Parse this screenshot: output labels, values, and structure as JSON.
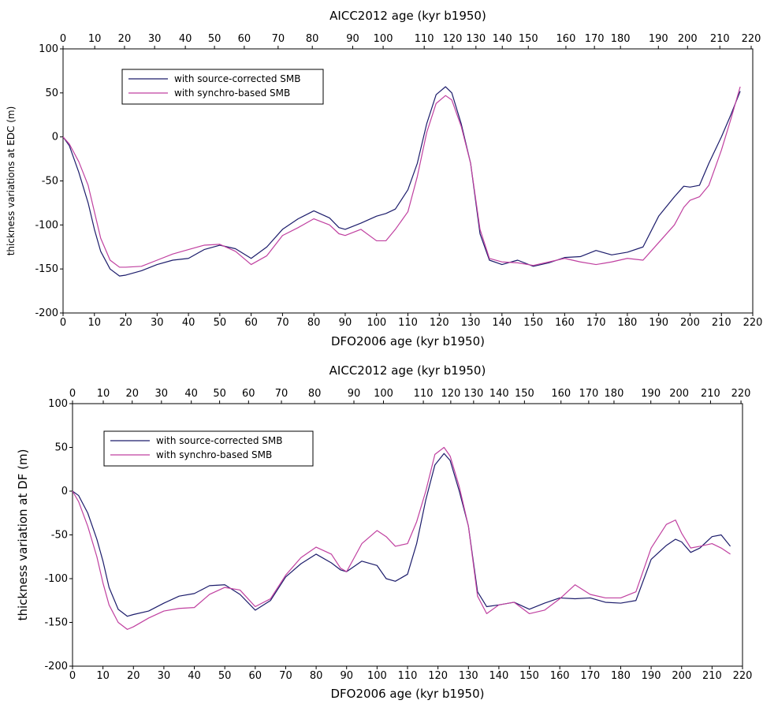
{
  "chart_data": [
    {
      "type": "line",
      "x2label": "AICC2012 age (kyr b1950)",
      "xlabel": "DFO2006 age (kyr b1950)",
      "ylabel": "thickness variations at EDC (m)",
      "xlim": [
        0,
        220
      ],
      "ylim": [
        -200,
        100
      ],
      "xticks": [
        0,
        10,
        20,
        30,
        40,
        50,
        60,
        70,
        80,
        90,
        100,
        110,
        120,
        130,
        140,
        150,
        160,
        170,
        180,
        190,
        200,
        210,
        220
      ],
      "yticks": [
        -200,
        -150,
        -100,
        -50,
        0,
        50,
        100
      ],
      "x2ticks": [
        0,
        10,
        20,
        30,
        40,
        50,
        60,
        70,
        80,
        90,
        100,
        110,
        120,
        130,
        140,
        150,
        160,
        170,
        180,
        190,
        200,
        210,
        220
      ],
      "x2tick_positions": [
        0,
        10.1,
        19.6,
        29.2,
        39.0,
        48.3,
        57.8,
        68.6,
        79.5,
        92.4,
        102.1,
        115.2,
        124.2,
        131.7,
        140.1,
        148.4,
        160.4,
        169.5,
        177.8,
        189.9,
        199.2,
        209.5,
        219.5
      ],
      "x": [
        0,
        2,
        5,
        8,
        10,
        12,
        15,
        18,
        20,
        25,
        30,
        35,
        40,
        45,
        50,
        55,
        60,
        65,
        70,
        75,
        80,
        85,
        88,
        90,
        95,
        100,
        103,
        106,
        110,
        113,
        116,
        119,
        122,
        124,
        127,
        130,
        133,
        136,
        140,
        145,
        150,
        155,
        160,
        165,
        170,
        175,
        180,
        185,
        190,
        195,
        198,
        200,
        203,
        206,
        210,
        213,
        216
      ],
      "series": [
        {
          "name": "with source-corrected SMB",
          "color": "#1c1c6b",
          "values": [
            0,
            -10,
            -40,
            -75,
            -105,
            -130,
            -150,
            -158,
            -157,
            -152,
            -145,
            -140,
            -138,
            -128,
            -123,
            -127,
            -138,
            -125,
            -105,
            -93,
            -84,
            -92,
            -103,
            -105,
            -98,
            -90,
            -87,
            -82,
            -60,
            -30,
            15,
            48,
            57,
            50,
            15,
            -30,
            -110,
            -140,
            -145,
            -140,
            -147,
            -143,
            -137,
            -136,
            -129,
            -134,
            -131,
            -125,
            -90,
            -68,
            -56,
            -57,
            -55,
            -30,
            0,
            25,
            52
          ]
        },
        {
          "name": "with synchro-based SMB",
          "color": "#c040a0",
          "values": [
            0,
            -8,
            -28,
            -55,
            -85,
            -115,
            -140,
            -148,
            -148,
            -147,
            -140,
            -133,
            -128,
            -123,
            -122,
            -130,
            -145,
            -135,
            -112,
            -103,
            -93,
            -100,
            -110,
            -112,
            -105,
            -118,
            -118,
            -105,
            -85,
            -45,
            5,
            38,
            47,
            42,
            12,
            -30,
            -105,
            -138,
            -142,
            -143,
            -146,
            -142,
            -138,
            -142,
            -145,
            -142,
            -138,
            -140,
            -120,
            -100,
            -80,
            -72,
            -68,
            -55,
            -15,
            20,
            57
          ]
        }
      ]
    },
    {
      "type": "line",
      "x2label": "AICC2012 age (kyr b1950)",
      "xlabel": "DFO2006 age (kyr b1950)",
      "ylabel": "thickness variation at DF (m)",
      "xlim": [
        0,
        220
      ],
      "ylim": [
        -200,
        100
      ],
      "xticks": [
        0,
        10,
        20,
        30,
        40,
        50,
        60,
        70,
        80,
        90,
        100,
        110,
        120,
        130,
        140,
        150,
        160,
        170,
        180,
        190,
        200,
        210,
        220
      ],
      "yticks": [
        -200,
        -150,
        -100,
        -50,
        0,
        50,
        100
      ],
      "x2ticks": [
        0,
        10,
        20,
        30,
        40,
        50,
        60,
        70,
        80,
        90,
        100,
        110,
        120,
        130,
        140,
        150,
        160,
        170,
        180,
        190,
        200,
        210,
        220
      ],
      "x2tick_positions": [
        0,
        10.1,
        19.6,
        29.2,
        39.0,
        48.3,
        57.8,
        68.6,
        79.5,
        92.4,
        102.1,
        115.2,
        124.2,
        131.7,
        140.1,
        148.4,
        160.4,
        169.5,
        177.8,
        189.9,
        199.2,
        209.5,
        219.5
      ],
      "x": [
        0,
        2,
        5,
        8,
        10,
        12,
        15,
        18,
        20,
        25,
        30,
        35,
        40,
        45,
        50,
        55,
        60,
        65,
        70,
        75,
        80,
        85,
        88,
        90,
        95,
        100,
        103,
        106,
        110,
        113,
        116,
        119,
        122,
        124,
        127,
        130,
        133,
        136,
        140,
        145,
        150,
        155,
        160,
        165,
        170,
        175,
        180,
        185,
        190,
        195,
        198,
        200,
        203,
        206,
        210,
        213,
        216
      ],
      "series": [
        {
          "name": "with source-corrected SMB",
          "color": "#1c1c6b",
          "values": [
            0,
            -5,
            -25,
            -55,
            -80,
            -110,
            -135,
            -143,
            -141,
            -137,
            -128,
            -120,
            -117,
            -108,
            -107,
            -118,
            -136,
            -125,
            -98,
            -83,
            -72,
            -82,
            -90,
            -92,
            -80,
            -85,
            -100,
            -103,
            -95,
            -60,
            -10,
            30,
            43,
            35,
            0,
            -40,
            -115,
            -132,
            -130,
            -127,
            -135,
            -128,
            -122,
            -123,
            -122,
            -127,
            -128,
            -125,
            -78,
            -62,
            -55,
            -58,
            -70,
            -65,
            -52,
            -50,
            -63
          ]
        },
        {
          "name": "with synchro-based SMB",
          "color": "#c040a0",
          "values": [
            0,
            -12,
            -40,
            -75,
            -105,
            -130,
            -150,
            -158,
            -155,
            -145,
            -137,
            -134,
            -133,
            -118,
            -110,
            -113,
            -132,
            -123,
            -96,
            -76,
            -64,
            -72,
            -88,
            -92,
            -60,
            -45,
            -52,
            -63,
            -60,
            -35,
            0,
            42,
            50,
            40,
            5,
            -40,
            -120,
            -140,
            -130,
            -127,
            -140,
            -136,
            -123,
            -107,
            -118,
            -122,
            -122,
            -115,
            -65,
            -38,
            -33,
            -48,
            -65,
            -63,
            -60,
            -65,
            -72
          ]
        }
      ]
    }
  ]
}
